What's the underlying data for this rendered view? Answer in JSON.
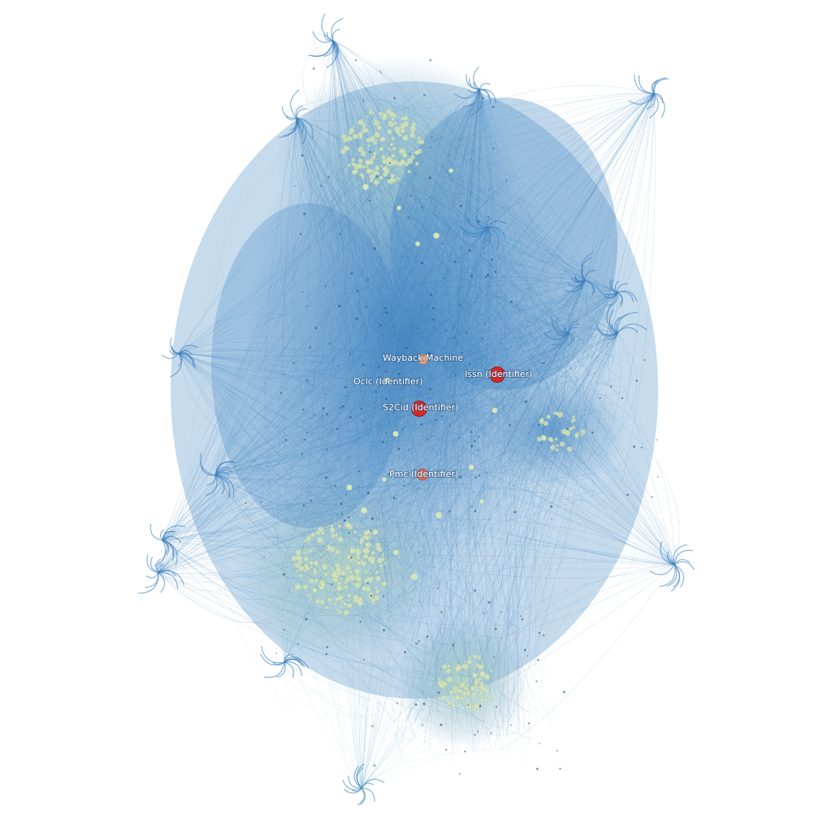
{
  "graph": {
    "background": "#ffffff",
    "edge_color": "#3a7fbf",
    "edge_color_light": "#8fc0d0",
    "cluster_node_color": "#d9e6b8",
    "hubs": [
      {
        "name": "wayback-machine-node",
        "label": "Wayback Machine",
        "color": "#f4a57a"
      },
      {
        "name": "oclc-node",
        "label": "Oclc (Identifier)",
        "color": "#e8efc4"
      },
      {
        "name": "issn-node",
        "label": "Issn (Identifier)",
        "color": "#d62728"
      },
      {
        "name": "s2cid-node",
        "label": "S2Cid (Identifier)",
        "color": "#d62728"
      },
      {
        "name": "pmc-node",
        "label": "Pmc (Identifier)",
        "color": "#e0685a"
      }
    ]
  }
}
